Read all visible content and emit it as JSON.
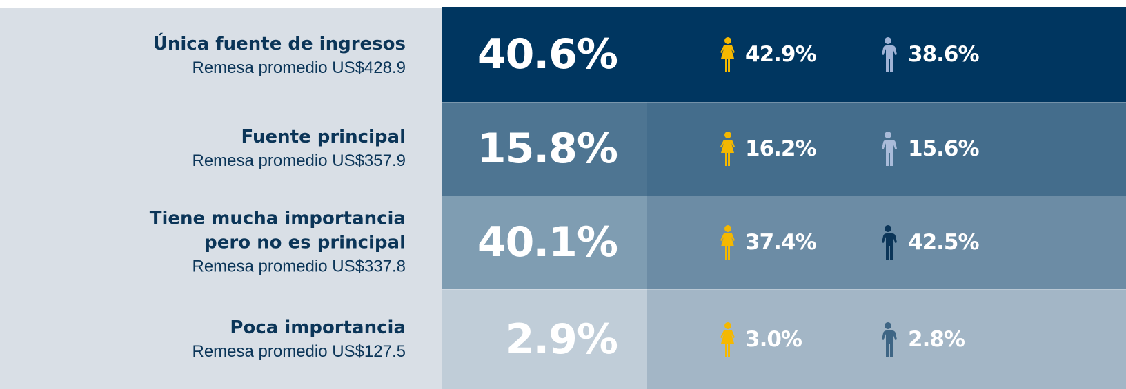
{
  "rows": [
    {
      "title": [
        "Única fuente de ingresos"
      ],
      "subtitle": "Remesa promedio US$428.9",
      "total": "40.6%",
      "women": "42.9%",
      "men": "38.6%"
    },
    {
      "title": [
        "Fuente principal"
      ],
      "subtitle": "Remesa promedio US$357.9",
      "total": "15.8%",
      "women": "16.2%",
      "men": "15.6%"
    },
    {
      "title": [
        "Tiene mucha importancia",
        "pero no es principal"
      ],
      "subtitle": "Remesa promedio US$337.8",
      "total": "40.1%",
      "women": "37.4%",
      "men": "42.5%"
    },
    {
      "title": [
        "Poca importancia"
      ],
      "subtitle": "Remesa promedio US$127.5",
      "total": "2.9%",
      "women": "3.0%",
      "men": "2.8%"
    }
  ]
}
